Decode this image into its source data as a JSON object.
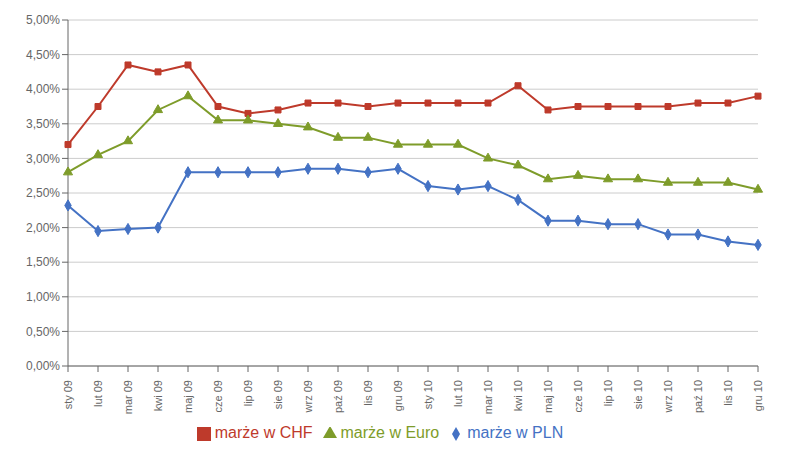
{
  "chart_data": {
    "type": "line",
    "categories": [
      "sty 09",
      "lut 09",
      "mar 09",
      "kwi 09",
      "maj 09",
      "cze 09",
      "lip 09",
      "sie 09",
      "wrz 09",
      "paź 09",
      "lis 09",
      "gru 09",
      "sty 10",
      "lut 10",
      "mar 10",
      "kwi 10",
      "maj 10",
      "cze 10",
      "lip 10",
      "sie 10",
      "wrz 10",
      "paź 10",
      "lis 10",
      "gru 10"
    ],
    "series": [
      {
        "name": "marże w PLN",
        "color": "#4472C4",
        "marker": "diamond",
        "values": [
          0.0232,
          0.0195,
          0.0198,
          0.02,
          0.028,
          0.028,
          0.028,
          0.028,
          0.0285,
          0.0285,
          0.028,
          0.0285,
          0.026,
          0.0255,
          0.026,
          0.024,
          0.021,
          0.021,
          0.0205,
          0.0205,
          0.019,
          0.019,
          0.018,
          0.0175
        ]
      },
      {
        "name": "marże w CHF",
        "color": "#BE3A2B",
        "marker": "square",
        "values": [
          0.032,
          0.0375,
          0.0435,
          0.0425,
          0.0435,
          0.0375,
          0.0365,
          0.037,
          0.038,
          0.038,
          0.0375,
          0.038,
          0.038,
          0.038,
          0.038,
          0.0405,
          0.037,
          0.0375,
          0.0375,
          0.0375,
          0.0375,
          0.038,
          0.038,
          0.039
        ]
      },
      {
        "name": "marże w Euro",
        "color": "#7E9C2A",
        "marker": "triangle",
        "values": [
          0.028,
          0.0305,
          0.0325,
          0.037,
          0.039,
          0.0355,
          0.0355,
          0.035,
          0.0345,
          0.033,
          0.033,
          0.032,
          0.032,
          0.032,
          0.03,
          0.029,
          0.027,
          0.0275,
          0.027,
          0.027,
          0.0265,
          0.0265,
          0.0265,
          0.0255
        ]
      }
    ],
    "ylim": [
      0.0,
      0.05
    ],
    "yticks": [
      {
        "value": 0.0,
        "label": "0,00%"
      },
      {
        "value": 0.005,
        "label": "0,50%"
      },
      {
        "value": 0.01,
        "label": "1,00%"
      },
      {
        "value": 0.015,
        "label": "1,50%"
      },
      {
        "value": 0.02,
        "label": "2,00%"
      },
      {
        "value": 0.025,
        "label": "2,50%"
      },
      {
        "value": 0.03,
        "label": "3,00%"
      },
      {
        "value": 0.035,
        "label": "3,50%"
      },
      {
        "value": 0.04,
        "label": "4,00%"
      },
      {
        "value": 0.045,
        "label": "4,50%"
      },
      {
        "value": 0.05,
        "label": "5,00%"
      }
    ],
    "grid": true,
    "legend": "bottom"
  }
}
